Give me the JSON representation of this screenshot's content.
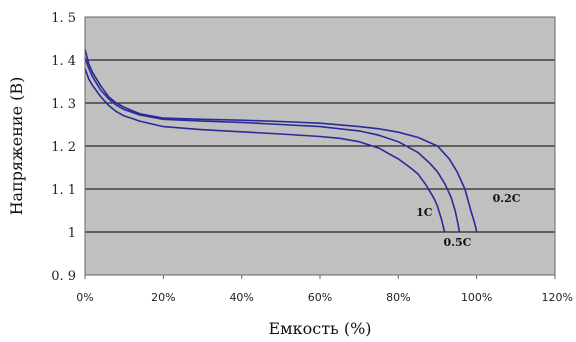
{
  "chart_data": {
    "type": "line",
    "xlabel": "Емкость (%)",
    "ylabel": "Напряжение (В)",
    "xlim": [
      0,
      120
    ],
    "ylim": [
      0.9,
      1.5
    ],
    "x_ticks": [
      "0%",
      "20%",
      "40%",
      "60%",
      "80%",
      "100%",
      "120%"
    ],
    "y_ticks": [
      "0. 9",
      "1",
      "1. 1",
      "1. 2",
      "1. 3",
      "1. 4",
      "1. 5"
    ],
    "grid": true,
    "background": "#c0c0c0",
    "line_color": "#2a2a9a",
    "series": [
      {
        "name": "0.2C",
        "x": [
          0,
          1,
          2,
          4,
          6,
          8,
          10,
          14,
          20,
          30,
          40,
          50,
          60,
          70,
          75,
          80,
          85,
          90,
          93,
          95,
          97,
          98.5,
          99.5,
          100
        ],
        "y": [
          1.425,
          1.39,
          1.37,
          1.34,
          1.315,
          1.3,
          1.29,
          1.275,
          1.265,
          1.262,
          1.26,
          1.257,
          1.253,
          1.245,
          1.24,
          1.232,
          1.22,
          1.2,
          1.17,
          1.14,
          1.1,
          1.05,
          1.02,
          1.0
        ]
      },
      {
        "name": "0.5C",
        "x": [
          0,
          1,
          2,
          4,
          6,
          8,
          10,
          14,
          20,
          30,
          40,
          50,
          60,
          70,
          75,
          80,
          85,
          88,
          90,
          92,
          93.5,
          94.5,
          95.2,
          95.6
        ],
        "y": [
          1.405,
          1.38,
          1.36,
          1.33,
          1.31,
          1.295,
          1.285,
          1.272,
          1.262,
          1.258,
          1.255,
          1.25,
          1.245,
          1.235,
          1.225,
          1.21,
          1.185,
          1.16,
          1.14,
          1.11,
          1.08,
          1.05,
          1.02,
          1.0
        ]
      },
      {
        "name": "1C",
        "x": [
          0,
          1,
          2,
          4,
          6,
          8,
          10,
          14,
          20,
          30,
          40,
          50,
          60,
          65,
          70,
          75,
          80,
          83,
          85,
          87,
          89,
          90,
          91,
          91.8
        ],
        "y": [
          1.38,
          1.355,
          1.34,
          1.315,
          1.295,
          1.28,
          1.27,
          1.258,
          1.245,
          1.238,
          1.233,
          1.228,
          1.222,
          1.218,
          1.21,
          1.195,
          1.17,
          1.15,
          1.135,
          1.11,
          1.08,
          1.06,
          1.03,
          1.0
        ]
      }
    ]
  }
}
